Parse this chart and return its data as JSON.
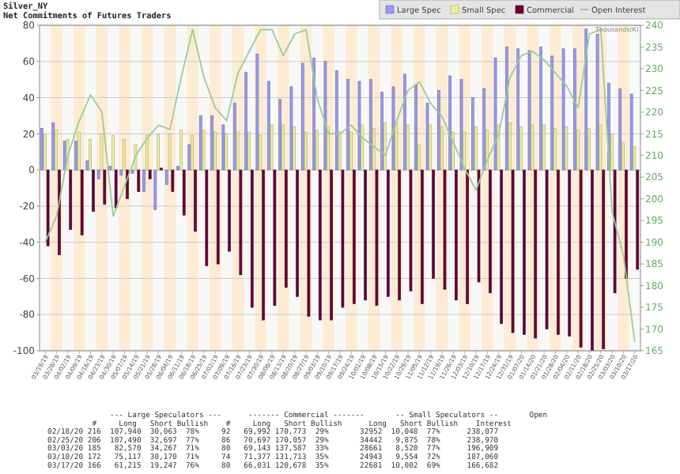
{
  "chart_data": {
    "type": "bar",
    "title": "Silver_NY",
    "subtitle": "Net Commitments of Futures Traders",
    "y2label": "Thousands(K)",
    "categories": [
      "03/19/19",
      "03/26/19",
      "04/02/19",
      "04/09/19",
      "04/16/19",
      "04/23/19",
      "04/30/19",
      "05/07/19",
      "05/14/19",
      "05/21/19",
      "05/28/19",
      "06/04/19",
      "06/11/19",
      "06/18/19",
      "06/25/19",
      "07/02/19",
      "07/09/19",
      "07/16/19",
      "07/23/19",
      "07/30/19",
      "08/06/19",
      "08/13/19",
      "08/20/19",
      "08/27/19",
      "09/03/19",
      "09/10/19",
      "09/17/19",
      "09/24/19",
      "10/01/19",
      "10/08/19",
      "10/15/19",
      "10/22/19",
      "10/29/19",
      "11/05/19",
      "11/12/19",
      "11/19/19",
      "11/26/19",
      "12/03/19",
      "12/10/19",
      "12/17/19",
      "12/24/19",
      "12/31/19",
      "01/07/20",
      "01/14/20",
      "01/21/20",
      "01/28/20",
      "02/04/20",
      "02/11/20",
      "02/18/20",
      "02/25/20",
      "03/03/20",
      "03/10/20",
      "03/17/20"
    ],
    "series": [
      {
        "name": "Large Spec",
        "color": "#9999ee",
        "values": [
          23,
          26,
          16,
          16,
          5,
          -5,
          2,
          -3,
          -2,
          -12,
          -22,
          -8,
          2,
          14,
          30,
          30,
          25,
          37,
          54,
          64,
          49,
          39,
          46,
          59,
          62,
          60,
          55,
          50,
          49,
          50,
          43,
          46,
          53,
          47,
          37,
          44,
          52,
          50,
          40,
          45,
          62,
          68,
          67,
          66,
          68,
          63,
          67,
          67,
          78,
          75,
          48,
          45,
          42
        ]
      },
      {
        "name": "Small Spec",
        "color": "#eeee99",
        "values": [
          20,
          22,
          17,
          21,
          17,
          20,
          19,
          17,
          14,
          19,
          20,
          20,
          22,
          19,
          22,
          21,
          20,
          21,
          21,
          19,
          25,
          25,
          24,
          21,
          22,
          24,
          21,
          21,
          25,
          23,
          26,
          26,
          25,
          14,
          25,
          24,
          21,
          21,
          24,
          22,
          25,
          26,
          24,
          25,
          25,
          23,
          24,
          22,
          23,
          25,
          20,
          15,
          13
        ]
      },
      {
        "name": "Commercial",
        "color": "#660033",
        "values": [
          -42,
          -47,
          -33,
          -36,
          -23,
          -19,
          -21,
          -16,
          -12,
          -5,
          1,
          -12,
          -25,
          -34,
          -53,
          -52,
          -45,
          -58,
          -76,
          -83,
          -75,
          -65,
          -70,
          -81,
          -83,
          -83,
          -76,
          -74,
          -72,
          -75,
          -70,
          -72,
          -67,
          -74,
          -60,
          -66,
          -72,
          -74,
          -62,
          -68,
          -85,
          -90,
          -91,
          -93,
          -88,
          -91,
          -92,
          -98,
          -100,
          -99,
          -68,
          -60,
          -55
        ]
      },
      {
        "name": "Open Interest",
        "type": "line",
        "axis": "y2",
        "color": "#99cc99",
        "values": [
          190,
          196,
          210,
          218,
          224,
          220,
          196,
          203,
          210,
          214,
          217,
          216,
          228,
          239,
          228,
          221,
          218,
          229,
          234,
          239,
          239,
          233,
          238,
          239,
          223,
          215,
          215,
          217,
          214,
          212,
          210,
          218,
          225,
          227,
          222,
          219,
          213,
          207,
          202,
          209,
          215,
          228,
          233,
          234,
          232,
          229,
          226,
          221,
          238,
          239,
          197,
          187,
          167
        ]
      }
    ],
    "ylim": [
      -100,
      80
    ],
    "yticks": [
      -100,
      -80,
      -60,
      -40,
      -20,
      0,
      20,
      40,
      60,
      80
    ],
    "y2lim": [
      165,
      240
    ],
    "y2ticks": [
      165,
      170,
      175,
      180,
      185,
      190,
      195,
      200,
      205,
      210,
      215,
      220,
      225,
      230,
      235,
      240
    ],
    "grid": "y",
    "legend": "top right",
    "bands": [
      {
        "axis": "x",
        "from": "03/26/19",
        "to": "03/26/19",
        "color": "#fdebd3"
      },
      {
        "axis": "x",
        "from": "04/09/19",
        "to": "04/09/19",
        "color": "#fdebd3"
      },
      {
        "axis": "x",
        "from": "04/23/19",
        "to": "04/23/19",
        "color": "#fdebd3"
      },
      {
        "axis": "x",
        "from": "05/07/19",
        "to": "05/07/19",
        "color": "#fdebd3"
      },
      {
        "axis": "x",
        "from": "05/21/19",
        "to": "05/21/19",
        "color": "#fdebd3"
      },
      {
        "axis": "x",
        "from": "06/04/19",
        "to": "06/04/19",
        "color": "#fdebd3"
      },
      {
        "axis": "x",
        "from": "06/18/19",
        "to": "06/18/19",
        "color": "#fdebd3"
      },
      {
        "axis": "x",
        "from": "07/02/19",
        "to": "07/02/19",
        "color": "#fdebd3"
      },
      {
        "axis": "x",
        "from": "07/16/19",
        "to": "07/16/19",
        "color": "#fdebd3"
      },
      {
        "axis": "x",
        "from": "07/30/19",
        "to": "07/30/19",
        "color": "#fdebd3"
      },
      {
        "axis": "x",
        "from": "08/13/19",
        "to": "08/13/19",
        "color": "#fdebd3"
      },
      {
        "axis": "x",
        "from": "08/27/19",
        "to": "08/27/19",
        "color": "#fdebd3"
      },
      {
        "axis": "x",
        "from": "09/10/19",
        "to": "09/10/19",
        "color": "#fdebd3"
      },
      {
        "axis": "x",
        "from": "09/24/19",
        "to": "09/24/19",
        "color": "#fdebd3"
      },
      {
        "axis": "x",
        "from": "10/08/19",
        "to": "10/08/19",
        "color": "#fdebd3"
      },
      {
        "axis": "x",
        "from": "10/22/19",
        "to": "10/22/19",
        "color": "#fdebd3"
      },
      {
        "axis": "x",
        "from": "11/05/19",
        "to": "11/05/19",
        "color": "#fdebd3"
      },
      {
        "axis": "x",
        "from": "11/19/19",
        "to": "11/19/19",
        "color": "#fdebd3"
      },
      {
        "axis": "x",
        "from": "12/03/19",
        "to": "12/03/19",
        "color": "#fdebd3"
      },
      {
        "axis": "x",
        "from": "12/17/19",
        "to": "12/17/19",
        "color": "#fdebd3"
      },
      {
        "axis": "x",
        "from": "12/31/19",
        "to": "12/31/19",
        "color": "#fdebd3"
      },
      {
        "axis": "x",
        "from": "01/14/20",
        "to": "01/14/20",
        "color": "#fdebd3"
      },
      {
        "axis": "x",
        "from": "01/28/20",
        "to": "01/28/20",
        "color": "#fdebd3"
      },
      {
        "axis": "x",
        "from": "02/11/20",
        "to": "02/11/20",
        "color": "#fdebd3"
      },
      {
        "axis": "x",
        "from": "02/25/20",
        "to": "02/25/20",
        "color": "#fdebd3"
      },
      {
        "axis": "x",
        "from": "03/10/20",
        "to": "03/10/20",
        "color": "#fdebd3"
      }
    ],
    "annotations": [
      "              --- Large Speculators ---      ------- Commercial -------       -- Small Speculators --       Open",
      "          #     Long   Short Bullish    #     Long   Short Bullish      Long   Short Bullish    Interest",
      "02/18/20 216  107,940  30,063  78%     92   69,992 170,773  29%       32952  10,048  77%      238,077",
      "02/25/20 206  107,490  32,697  77%     86   70,697 170,057  29%       34442   9,875  78%      238,970",
      "03/03/20 185   82,570  34,267  71%     80   69,143 137,587  33%       28661   8,520  77%      196,909",
      "03/10/20 172   75,117  30,170  71%     74   71,377 131,713  35%       24943   9,554  72%      187,060",
      "03/17/20 166   61,215  19,247  76%     80   66,031 120,678  35%       22681  10,002  69%      166,682"
    ]
  }
}
